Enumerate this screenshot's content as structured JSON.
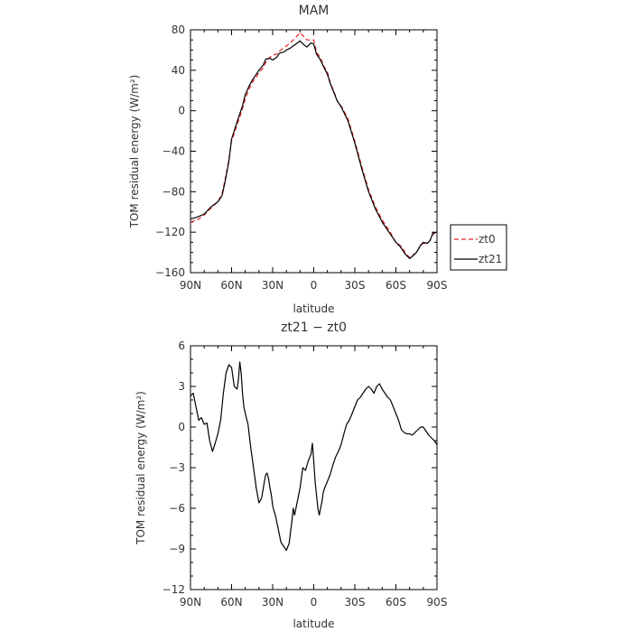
{
  "chart_data": [
    {
      "type": "line",
      "title": "MAM",
      "xlabel": "latitude",
      "ylabel": "TOM residual energy (W/m²)",
      "xlim": [
        90,
        -90
      ],
      "ylim": [
        -160,
        80
      ],
      "x_ticks": [
        90,
        60,
        30,
        0,
        -30,
        -60,
        -90
      ],
      "x_tick_labels": [
        "90N",
        "60N",
        "30N",
        "0",
        "30S",
        "60S",
        "90S"
      ],
      "y_ticks": [
        -160,
        -120,
        -80,
        -40,
        0,
        40,
        80
      ],
      "y_tick_labels": [
        "−160",
        "−120",
        "−80",
        "−40",
        "0",
        "40",
        "80"
      ],
      "legend_position": "right",
      "series": [
        {
          "name": "zt0",
          "color": "#e02020",
          "dash": "dashed",
          "x": [
            90,
            85,
            80,
            75,
            70,
            67,
            65,
            62,
            60,
            57,
            55,
            52,
            50,
            47,
            45,
            42,
            40,
            37,
            35,
            32,
            30,
            27,
            25,
            22,
            20,
            17,
            15,
            12,
            10,
            7,
            5,
            2,
            0,
            -2,
            -5,
            -7,
            -10,
            -12,
            -15,
            -17,
            -20,
            -25,
            -30,
            -35,
            -40,
            -45,
            -50,
            -55,
            -60,
            -63,
            -65,
            -67,
            -70,
            -72,
            -75,
            -78,
            -80,
            -83,
            -85,
            -87,
            -90
          ],
          "y": [
            -110,
            -108,
            -103,
            -96,
            -90,
            -82,
            -70,
            -48,
            -30,
            -18,
            -10,
            2,
            12,
            22,
            28,
            33,
            38,
            42,
            48,
            53,
            55,
            56,
            59,
            62,
            64,
            67,
            70,
            74,
            77,
            73,
            70,
            70,
            70,
            58,
            52,
            45,
            38,
            28,
            18,
            10,
            5,
            -8,
            -30,
            -55,
            -78,
            -95,
            -108,
            -118,
            -130,
            -133,
            -136,
            -141,
            -145,
            -143,
            -140,
            -133,
            -131,
            -131,
            -128,
            -122,
            -120
          ]
        },
        {
          "name": "zt21",
          "color": "#000000",
          "dash": "solid",
          "x": [
            90,
            85,
            80,
            75,
            70,
            67,
            65,
            62,
            60,
            57,
            55,
            52,
            50,
            47,
            45,
            42,
            40,
            37,
            35,
            32,
            30,
            27,
            25,
            22,
            20,
            17,
            15,
            12,
            10,
            7,
            5,
            2,
            0,
            -2,
            -5,
            -7,
            -10,
            -12,
            -15,
            -17,
            -20,
            -25,
            -30,
            -35,
            -40,
            -45,
            -50,
            -55,
            -60,
            -63,
            -65,
            -67,
            -70,
            -72,
            -75,
            -78,
            -80,
            -83,
            -85,
            -87,
            -90
          ],
          "y": [
            -107,
            -105,
            -102,
            -95,
            -90,
            -84,
            -72,
            -50,
            -28,
            -15,
            -7,
            5,
            16,
            25,
            30,
            36,
            40,
            45,
            51,
            52,
            50,
            53,
            57,
            58,
            60,
            62,
            64,
            67,
            69,
            65,
            63,
            67,
            66,
            56,
            50,
            44,
            36,
            27,
            17,
            10,
            4,
            -10,
            -32,
            -57,
            -80,
            -97,
            -110,
            -120,
            -130,
            -134,
            -138,
            -142,
            -146,
            -144,
            -140,
            -133,
            -130,
            -131,
            -128,
            -121,
            -120
          ]
        }
      ]
    },
    {
      "type": "line",
      "title": "zt21 − zt0",
      "xlabel": "latitude",
      "ylabel": "TOM residual energy (W/m²)",
      "xlim": [
        90,
        -90
      ],
      "ylim": [
        -12,
        6
      ],
      "x_ticks": [
        90,
        60,
        30,
        0,
        -30,
        -60,
        -90
      ],
      "x_tick_labels": [
        "90N",
        "60N",
        "30N",
        "0",
        "30S",
        "60S",
        "90S"
      ],
      "y_ticks": [
        -12,
        -9,
        -6,
        -3,
        0,
        3,
        6
      ],
      "y_tick_labels": [
        "−12",
        "−9",
        "−6",
        "−3",
        "0",
        "3",
        "6"
      ],
      "series": [
        {
          "color": "#000000",
          "dash": "solid",
          "x": [
            90,
            88,
            86,
            84,
            82,
            80,
            78,
            76,
            74,
            72,
            70,
            68,
            66,
            64,
            62,
            60,
            58,
            56,
            55,
            54,
            53,
            52,
            51,
            50,
            48,
            46,
            44,
            42,
            40,
            38,
            36,
            35,
            34,
            33,
            32,
            31,
            30,
            29,
            28,
            26,
            24,
            22,
            20,
            18,
            16,
            15,
            14,
            12,
            10,
            8,
            6,
            4,
            2,
            1,
            0,
            -1,
            -2,
            -3,
            -4,
            -5,
            -6,
            -7,
            -8,
            -10,
            -12,
            -14,
            -16,
            -18,
            -20,
            -22,
            -24,
            -26,
            -28,
            -30,
            -32,
            -34,
            -36,
            -38,
            -40,
            -42,
            -44,
            -46,
            -48,
            -50,
            -52,
            -54,
            -56,
            -58,
            -60,
            -62,
            -64,
            -66,
            -68,
            -70,
            -72,
            -74,
            -76,
            -78,
            -80,
            -82,
            -84,
            -86,
            -88,
            -90
          ],
          "y": [
            2.3,
            2.5,
            1.5,
            0.5,
            0.7,
            0.2,
            0.3,
            -1.0,
            -1.8,
            -1.2,
            -0.5,
            0.5,
            2.5,
            4.0,
            4.6,
            4.4,
            3.0,
            2.8,
            3.5,
            4.8,
            4.0,
            2.5,
            1.5,
            1.0,
            0.2,
            -1.5,
            -3.0,
            -4.5,
            -5.6,
            -5.2,
            -4.0,
            -3.5,
            -3.4,
            -3.8,
            -4.5,
            -5.0,
            -5.8,
            -6.2,
            -6.5,
            -7.5,
            -8.5,
            -8.8,
            -9.1,
            -8.6,
            -7.0,
            -6.0,
            -6.5,
            -5.5,
            -4.5,
            -3.0,
            -3.2,
            -2.5,
            -2.0,
            -1.2,
            -2.5,
            -4.0,
            -5.0,
            -6.0,
            -6.5,
            -6.0,
            -5.5,
            -4.8,
            -4.5,
            -4.0,
            -3.5,
            -2.8,
            -2.2,
            -1.8,
            -1.3,
            -0.5,
            0.2,
            0.5,
            1.0,
            1.5,
            2.0,
            2.2,
            2.5,
            2.8,
            3.0,
            2.8,
            2.5,
            3.0,
            3.2,
            2.8,
            2.5,
            2.2,
            2.0,
            1.5,
            1.0,
            0.5,
            -0.2,
            -0.4,
            -0.5,
            -0.5,
            -0.6,
            -0.4,
            -0.2,
            0.0,
            0.0,
            -0.3,
            -0.6,
            -0.8,
            -1.0,
            -1.3
          ]
        }
      ]
    }
  ]
}
